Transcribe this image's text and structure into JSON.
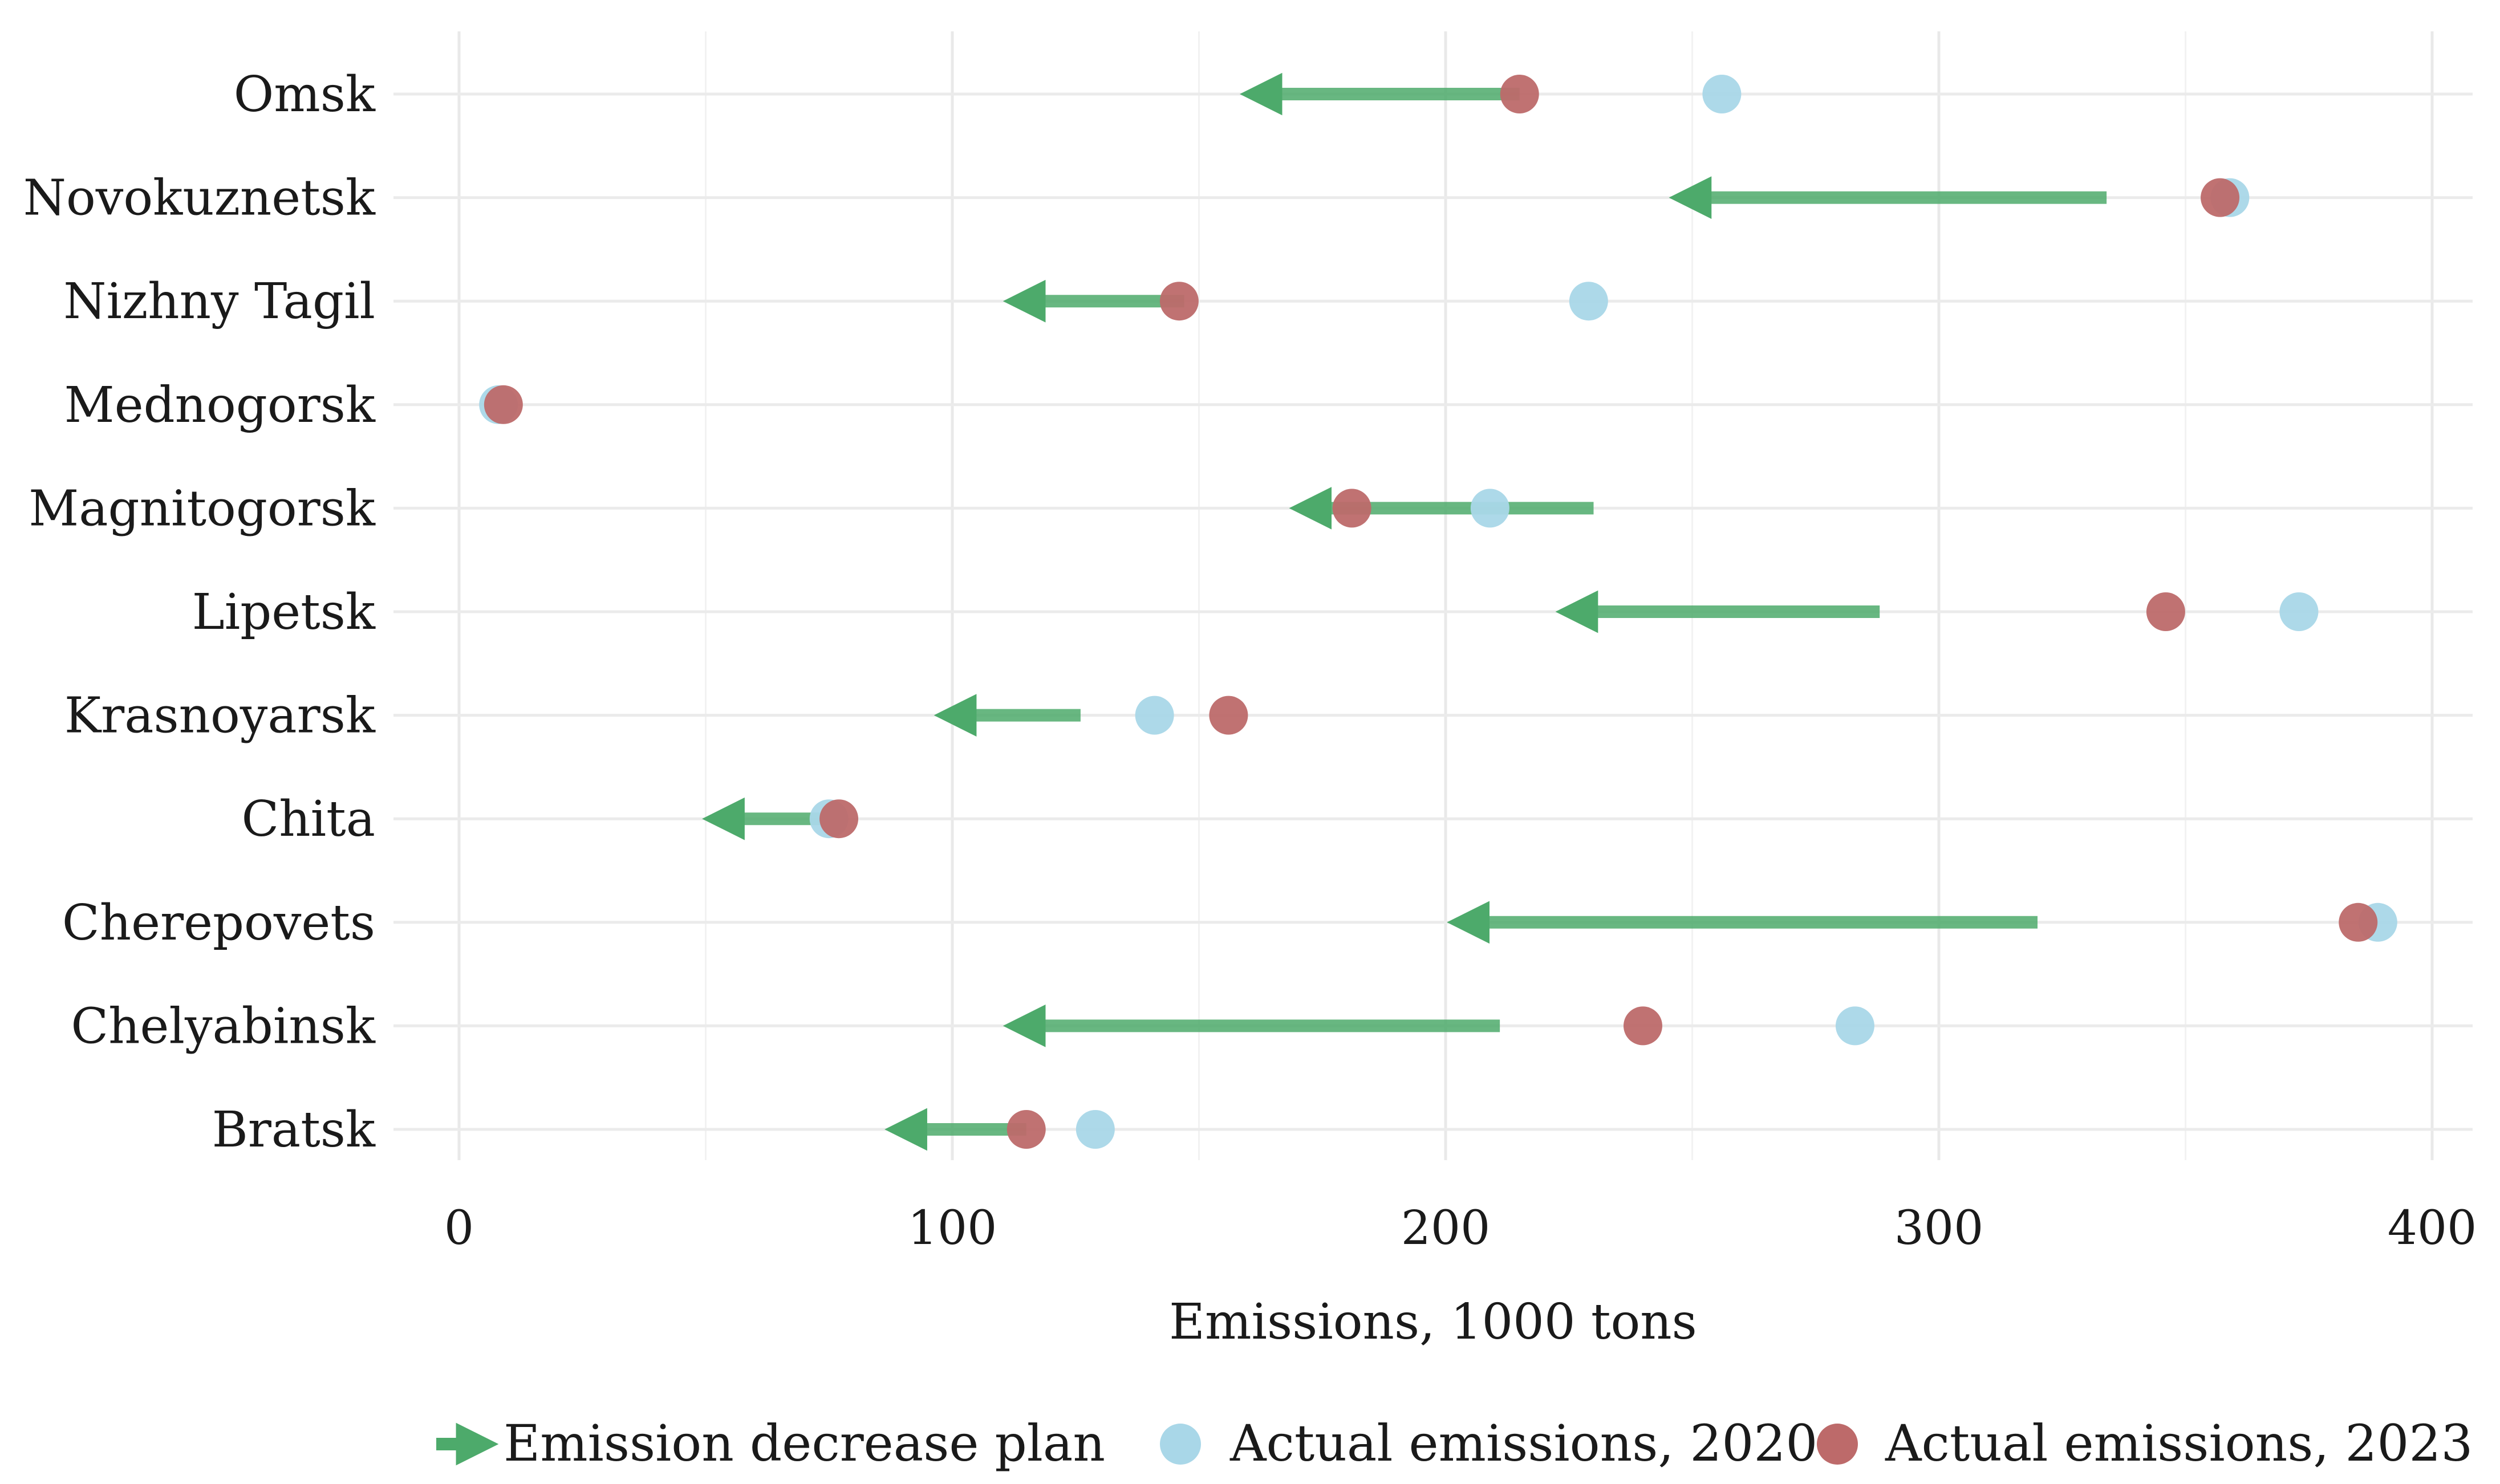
{
  "chart_data": {
    "type": "dumbbell",
    "title": "",
    "xlabel": "Emissions, 1000 tons",
    "ylabel": "",
    "xlim": [
      -14,
      404
    ],
    "xticks": [
      0,
      100,
      200,
      300,
      400
    ],
    "xtick_labels": [
      "0",
      "100",
      "200",
      "300",
      "400"
    ],
    "grid": true,
    "legend_position": "bottom",
    "categories": [
      "Omsk",
      "Novokuznetsk",
      "Nizhny Tagil",
      "Mednogorsk",
      "Magnitogorsk",
      "Lipetsk",
      "Krasnoyarsk",
      "Chita",
      "Cherepovets",
      "Chelyabinsk",
      "Bratsk"
    ],
    "series": [
      {
        "name": "Emission decrease plan",
        "kind": "arrow",
        "color": "#4daa6b",
        "start": [
          215,
          334,
          147,
          null,
          230,
          288,
          126,
          77,
          320,
          211,
          115
        ],
        "end": [
          162,
          249,
          114,
          null,
          172,
          226,
          100,
          53,
          204,
          114,
          90
        ]
      },
      {
        "name": "Actual emissions, 2020",
        "kind": "point",
        "color": "#a9d7e8",
        "values": [
          256,
          359,
          229,
          8,
          209,
          373,
          141,
          75,
          389,
          283,
          129
        ]
      },
      {
        "name": "Actual emissions, 2023",
        "kind": "point",
        "color": "#bd6a6a",
        "values": [
          215,
          357,
          146,
          9,
          181,
          346,
          156,
          77,
          385,
          240,
          115
        ]
      }
    ],
    "legend": [
      {
        "label": "Emission decrease plan",
        "symbol": "arrow",
        "color": "#4daa6b"
      },
      {
        "label": "Actual emissions, 2020",
        "symbol": "circle",
        "color": "#a9d7e8"
      },
      {
        "label": "Actual emissions, 2023",
        "symbol": "circle",
        "color": "#bd6a6a"
      }
    ]
  }
}
